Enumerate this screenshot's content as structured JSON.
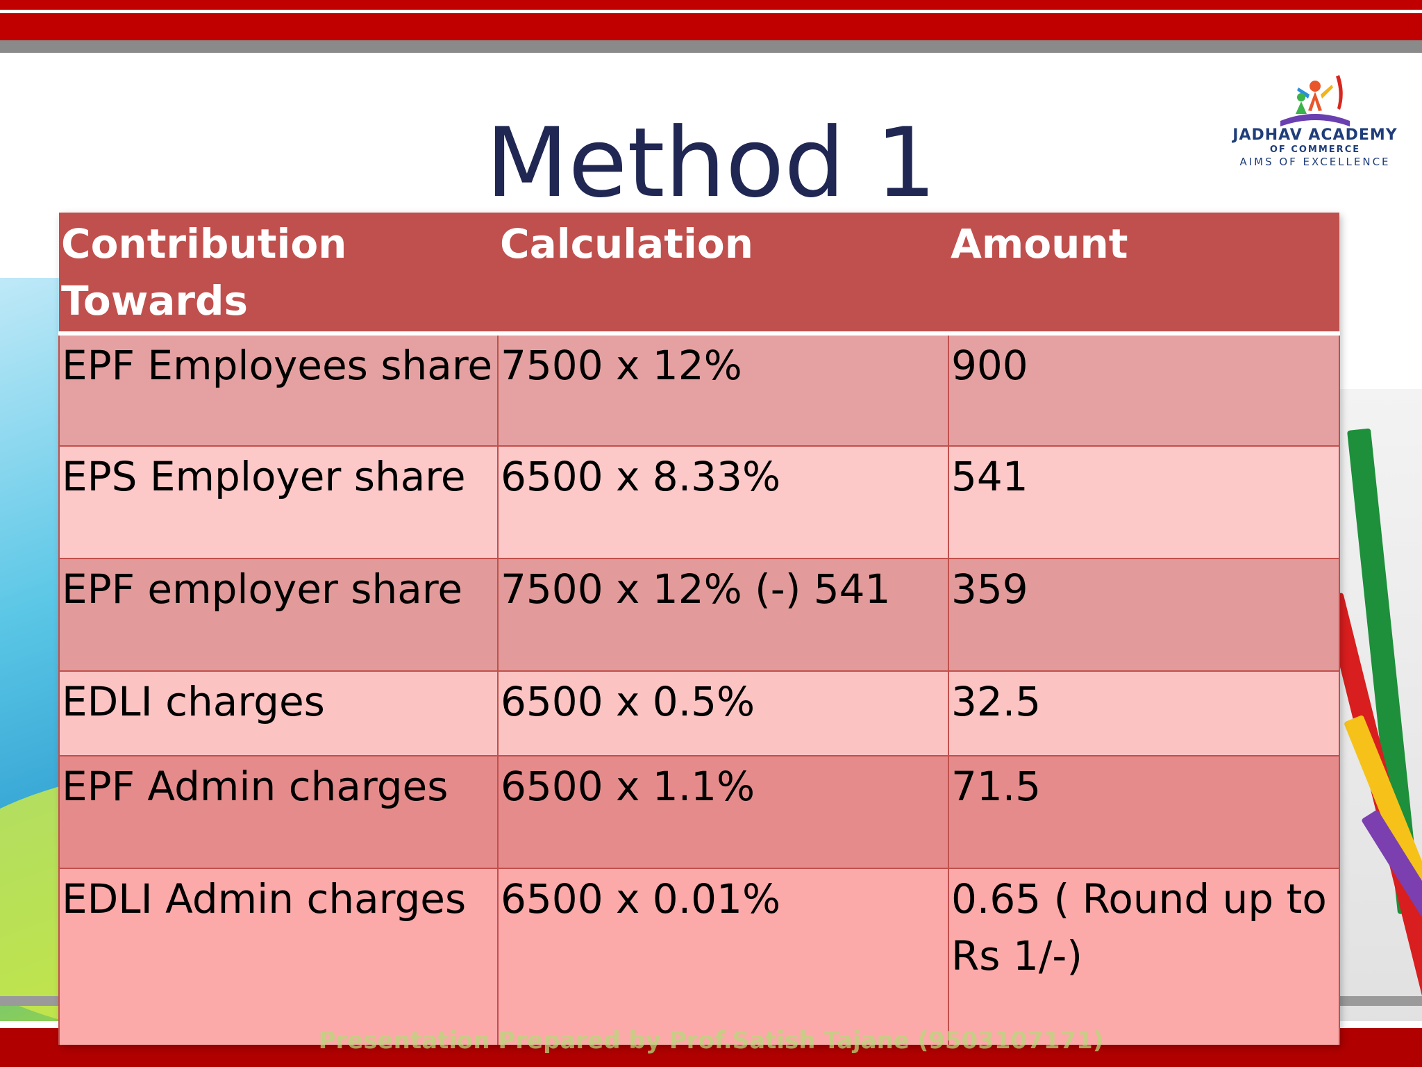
{
  "slide": {
    "title": "Method 1",
    "logo": {
      "line1": "JADHAV ACADEMY",
      "line2": "OF COMMERCE",
      "line3": "AIMS OF EXCELLENCE",
      "icon": "academy-logo-icon"
    },
    "table": {
      "headers": [
        "Contribution Towards",
        "Calculation",
        "Amount"
      ],
      "rows": [
        [
          "EPF Employees share",
          "7500 x 12%",
          "900"
        ],
        [
          "EPS Employer share",
          "6500 x 8.33%",
          "541"
        ],
        [
          "EPF employer share",
          "7500 x 12% (-) 541",
          "359"
        ],
        [
          "EDLI charges",
          "6500 x 0.5%",
          "32.5"
        ],
        [
          "EPF Admin charges",
          "6500 x 1.1%",
          "71.5"
        ],
        [
          "EDLI Admin charges",
          "6500 x 0.01%",
          "0.65 ( Round up to Rs 1/-)"
        ]
      ]
    },
    "footer": "Presentation Prepared by Prof.Satish Tajane (9503107171)",
    "colors": {
      "header_bg": "#c0504d",
      "title": "#1f2752",
      "top_bar": "#c00000"
    }
  }
}
